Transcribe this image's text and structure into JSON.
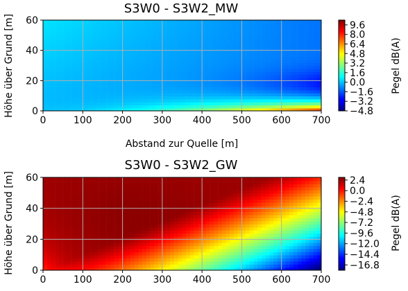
{
  "chart_data": [
    {
      "type": "heatmap",
      "title": "S3W0 - S3W2_MW",
      "xlabel": "Abstand zur Quelle [m]",
      "ylabel": "Höhe über Grund [m]",
      "xlim": [
        0,
        700
      ],
      "ylim": [
        0,
        60
      ],
      "xticks": [
        0,
        100,
        200,
        300,
        400,
        500,
        600,
        700
      ],
      "yticks": [
        0,
        20,
        40,
        60
      ],
      "grid": true,
      "colormap": "jet",
      "colorbar": {
        "label": "Pegel dB(A)",
        "range": [
          -4.8,
          10.4
        ],
        "ticks": [
          9.6,
          8.0,
          6.4,
          4.8,
          3.2,
          1.6,
          0.0,
          -1.6,
          -3.2,
          -4.8
        ],
        "tick_labels": [
          "9.6",
          "8.0",
          "6.4",
          "4.8",
          "3.2",
          "1.6",
          "0.0",
          "−1.6",
          "−3.2",
          "−4.8"
        ]
      },
      "field_description": "contour of level difference; high values (up to ~10 dB) near ground at large distance, minimum (~-4.8 dB) at ~700 m, ~15-20 m height; ~0 to -2 dB elsewhere"
    },
    {
      "type": "heatmap",
      "title": "S3W0 - S3W2_GW",
      "xlabel": "",
      "ylabel": "Höhe über Grund [m]",
      "xlim": [
        0,
        700
      ],
      "ylim": [
        0,
        60
      ],
      "xticks": [
        0,
        100,
        200,
        300,
        400,
        500,
        600,
        700
      ],
      "yticks": [
        0,
        20,
        40,
        60
      ],
      "grid": true,
      "colormap": "jet",
      "colorbar": {
        "label": "Pegel dB(A)",
        "range": [
          -18.0,
          3.0
        ],
        "ticks": [
          2.4,
          0.0,
          -2.4,
          -4.8,
          -7.2,
          -9.6,
          -12.0,
          -14.4,
          -16.8
        ],
        "tick_labels": [
          "2.4",
          "0.0",
          "−2.4",
          "−4.8",
          "−7.2",
          "−9.6",
          "−12.0",
          "−14.4",
          "−16.8"
        ]
      },
      "field_description": "contour of level difference; ~+2 dB over most of the field, decreasing to ~-17 dB near ground at 700 m"
    }
  ]
}
